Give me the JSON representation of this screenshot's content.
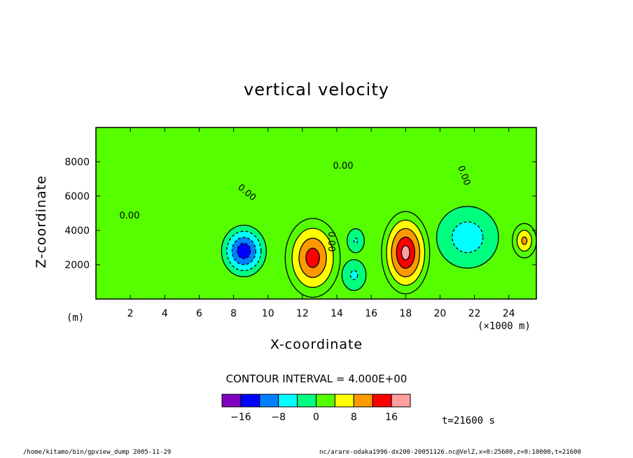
{
  "chart_data": {
    "type": "heatmap",
    "title": "vertical velocity",
    "xlabel": "X-coordinate",
    "ylabel": "Z-coordinate",
    "x_unit_label": "(×1000 m)",
    "y_unit_label": "(m)",
    "xlim": [
      0,
      25.6
    ],
    "ylim": [
      0,
      10000
    ],
    "x_ticks": [
      2,
      4,
      6,
      8,
      10,
      12,
      14,
      16,
      18,
      20,
      22,
      24
    ],
    "y_ticks": [
      2000,
      4000,
      6000,
      8000
    ],
    "contour_label": "0.00",
    "contour_interval_text": "CONTOUR INTERVAL = 4.000E+00",
    "levels": [
      -16,
      -12,
      -8,
      -4,
      0,
      4,
      8,
      12,
      16
    ],
    "colorbar_labels": [
      {
        "value": -16,
        "text": "−16"
      },
      {
        "value": -8,
        "text": "−8"
      },
      {
        "value": 0,
        "text": "0"
      },
      {
        "value": 8,
        "text": "8"
      },
      {
        "value": 16,
        "text": "16"
      }
    ],
    "colors": [
      "#7f00bf",
      "#0000ff",
      "#007fff",
      "#00ffff",
      "#00ff7f",
      "#55ff00",
      "#ffff00",
      "#ff9900",
      "#ff0000",
      "#ff9f9f"
    ],
    "background_color": "#55ff00",
    "regions": [
      {
        "sign": "positive",
        "peak": 17.0,
        "x_center": 18.0,
        "z_center": 2700,
        "x_radius": 1.4,
        "z_radius": 2400
      },
      {
        "sign": "positive",
        "peak": 14.0,
        "x_center": 12.6,
        "z_center": 2400,
        "x_radius": 1.6,
        "z_radius": 2300
      },
      {
        "sign": "positive",
        "peak": 9.0,
        "x_center": 24.9,
        "z_center": 3400,
        "x_radius": 0.7,
        "z_radius": 1000
      },
      {
        "sign": "negative",
        "peak": -15.0,
        "x_center": 8.6,
        "z_center": 2800,
        "x_radius": 1.3,
        "z_radius": 1500
      },
      {
        "sign": "negative",
        "peak": -7.0,
        "x_center": 21.6,
        "z_center": 3600,
        "x_radius": 1.8,
        "z_radius": 1800
      },
      {
        "sign": "negative",
        "peak": -5.0,
        "x_center": 15.0,
        "z_center": 1400,
        "x_radius": 0.7,
        "z_radius": 900
      },
      {
        "sign": "negative",
        "peak": -4.5,
        "x_center": 15.1,
        "z_center": 3400,
        "x_radius": 0.5,
        "z_radius": 700
      }
    ]
  },
  "annotations": {
    "time": "t=21600 s",
    "footer_left": "/home/kitamo/bin/gpview_dump  2005-11-29",
    "footer_right": "nc/arare-odaka1996-dx200-20051126.nc@VelZ,x=0:25600,z=0:10000,t=21600"
  }
}
